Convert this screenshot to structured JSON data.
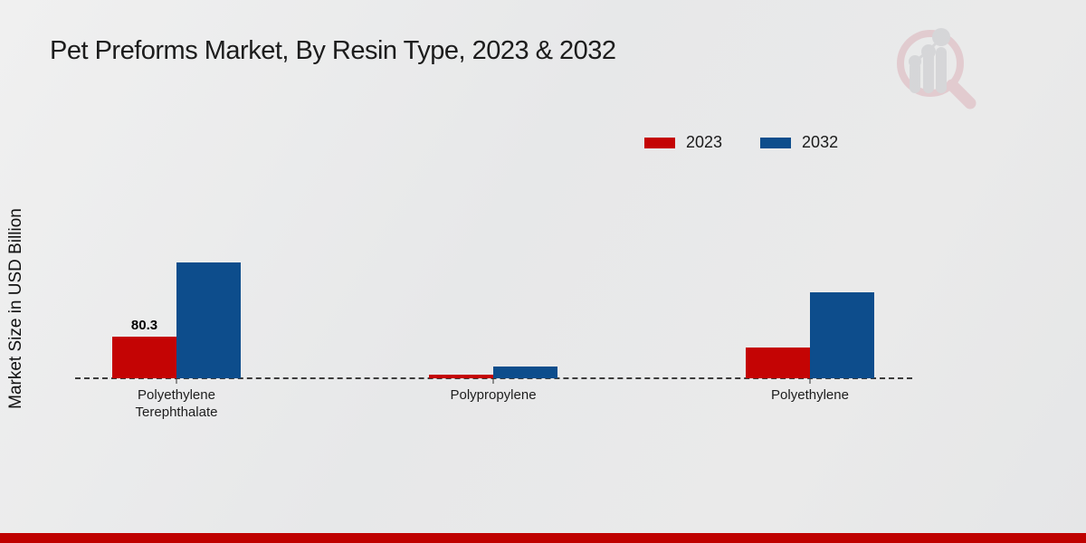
{
  "header": {
    "title": "Pet Preforms Market, By Resin Type, 2023 & 2032"
  },
  "chart_data": {
    "type": "bar",
    "title": "Pet Preforms Market, By Resin Type, 2023 & 2032",
    "xlabel": "",
    "ylabel": "Market Size in USD Billion",
    "categories": [
      "Polyethylene Terephthalate",
      "Polypropylene",
      "Polyethylene"
    ],
    "series": [
      {
        "name": "2023",
        "color": "#c40404",
        "values": [
          80.3,
          7,
          60
        ],
        "labels": [
          "80.3",
          "",
          ""
        ]
      },
      {
        "name": "2032",
        "color": "#0d4d8c",
        "values": [
          226,
          23,
          168
        ],
        "labels": [
          "",
          "",
          ""
        ]
      }
    ],
    "ylim": [
      0,
      240
    ],
    "grid": false,
    "axis_style": "dashed-baseline-only",
    "legend_position": "top-right",
    "annotations": [
      {
        "category": "Polyethylene Terephthalate",
        "series": "2023",
        "label": "80.3"
      }
    ]
  },
  "watermark": {
    "name": "market-research-magnifier-logo"
  },
  "colors": {
    "series_2023": "#c40404",
    "series_2032": "#0d4d8c",
    "bottom_strip": "#bf0100",
    "background": "#e8e9ea"
  }
}
